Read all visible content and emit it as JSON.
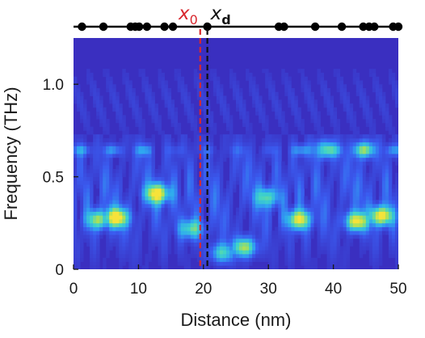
{
  "chart_data": {
    "type": "heatmap",
    "title": "",
    "xlabel": "Distance (nm)",
    "ylabel": "Frequency (THz)",
    "xlim": [
      0,
      50
    ],
    "ylim": [
      0,
      1.25
    ],
    "xticks": [
      0,
      10,
      20,
      30,
      40,
      50
    ],
    "xtick_labels": [
      "0",
      "10",
      "20",
      "30",
      "40",
      "50"
    ],
    "yticks": [
      0,
      0.5,
      1.0
    ],
    "ytick_labels": [
      "0",
      "0.5",
      "1.0"
    ],
    "colormap": [
      "#3a2fc0",
      "#3a5cf0",
      "#2fa8f0",
      "#3fd4c8",
      "#a8e05a",
      "#f6e33a"
    ],
    "background_color": "#3a2fc0",
    "grid": false,
    "vertical_lines": [
      {
        "name": "x0",
        "label_main": "x",
        "label_sub": "0",
        "x": 19.5,
        "color": "#d8282f",
        "dash": "dashed"
      },
      {
        "name": "xd",
        "label_main": "x",
        "label_sub": "d",
        "x": 20.6,
        "color": "#111111",
        "dash": "dashed"
      }
    ],
    "defect_positions_nm": [
      1.3,
      4.6,
      8.8,
      9.5,
      10.1,
      11.3,
      14.0,
      15.3,
      20.6,
      31.6,
      32.4,
      37.2,
      41.3,
      44.6,
      45.5,
      46.3,
      49.2,
      50.0
    ],
    "hotspots": [
      {
        "x": 3.8,
        "f": 0.27,
        "intensity": 0.72
      },
      {
        "x": 6.6,
        "f": 0.28,
        "intensity": 1.0
      },
      {
        "x": 12.9,
        "f": 0.41,
        "intensity": 0.98
      },
      {
        "x": 18.1,
        "f": 0.22,
        "intensity": 0.6
      },
      {
        "x": 26.3,
        "f": 0.12,
        "intensity": 0.78
      },
      {
        "x": 22.9,
        "f": 0.09,
        "intensity": 0.55
      },
      {
        "x": 29.8,
        "f": 0.39,
        "intensity": 0.55
      },
      {
        "x": 34.7,
        "f": 0.27,
        "intensity": 0.88
      },
      {
        "x": 43.6,
        "f": 0.26,
        "intensity": 0.92
      },
      {
        "x": 47.4,
        "f": 0.29,
        "intensity": 0.97
      },
      {
        "x": 38.6,
        "f": 0.65,
        "intensity": 0.45
      },
      {
        "x": 44.8,
        "f": 0.65,
        "intensity": 0.45
      }
    ]
  }
}
